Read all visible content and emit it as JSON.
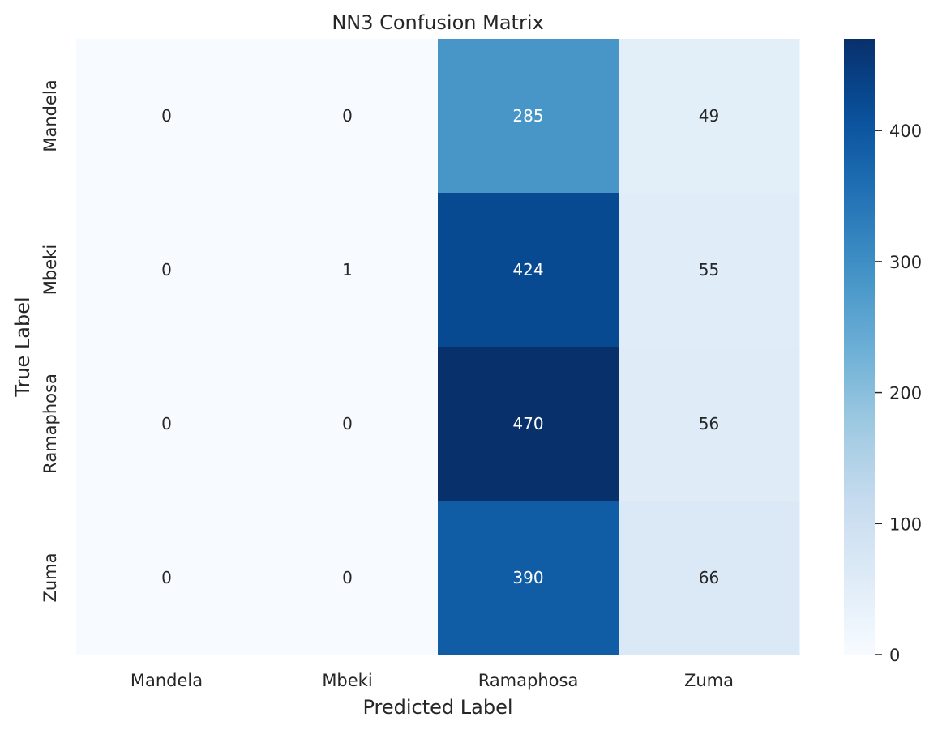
{
  "chart_data": {
    "type": "heatmap",
    "title": "NN3 Confusion Matrix",
    "xlabel": "Predicted Label",
    "ylabel": "True Label",
    "x_categories": [
      "Mandela",
      "Mbeki",
      "Ramaphosa",
      "Zuma"
    ],
    "y_categories": [
      "Mandela",
      "Mbeki",
      "Ramaphosa",
      "Zuma"
    ],
    "matrix": [
      [
        0,
        0,
        285,
        49
      ],
      [
        0,
        1,
        424,
        55
      ],
      [
        0,
        0,
        470,
        56
      ],
      [
        0,
        0,
        390,
        66
      ]
    ],
    "colormap": "Blues",
    "vmin": 0,
    "vmax": 470,
    "colorbar_ticks": [
      0,
      100,
      200,
      300,
      400
    ],
    "annotation_dark_color": "#262626",
    "annotation_light_color": "#ffffff"
  }
}
